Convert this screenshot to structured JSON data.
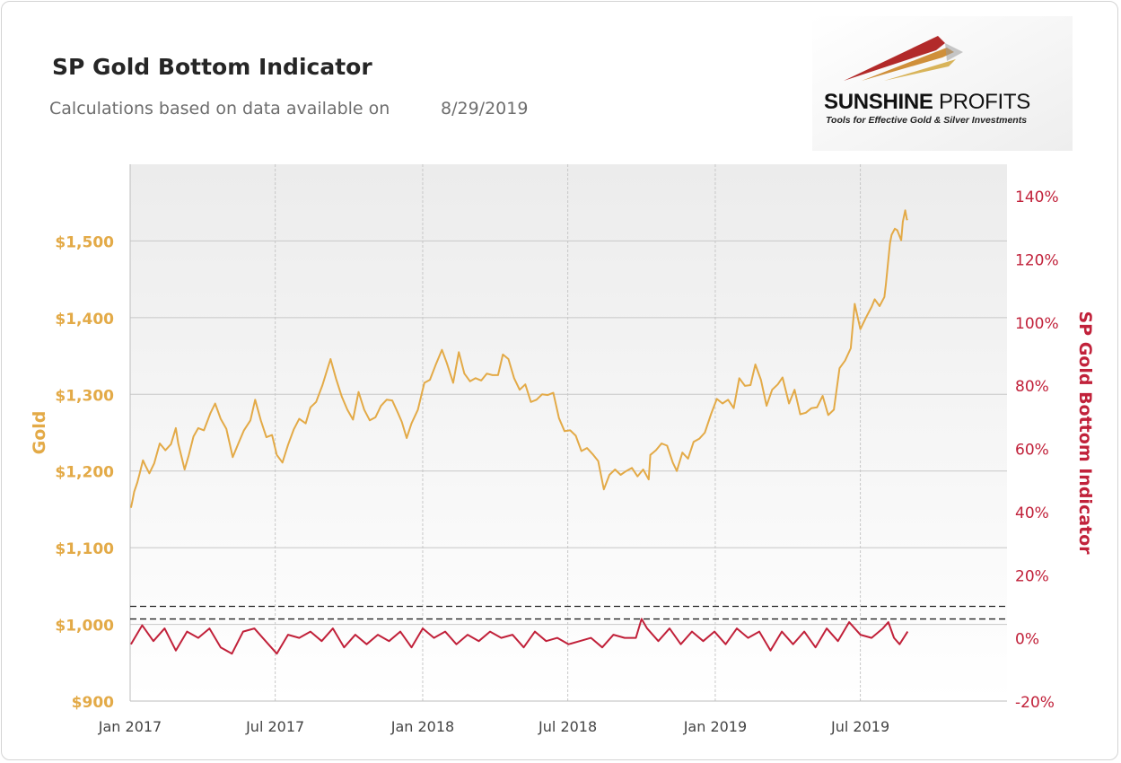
{
  "header": {
    "title": "SP Gold Bottom Indicator",
    "subtitle_label": "Calculations based on data available on",
    "subtitle_date": "8/29/2019"
  },
  "logo": {
    "name_bold": "SUNSHINE",
    "name_regular": " PROFITS",
    "tagline": "Tools for Effective Gold & Silver Investments"
  },
  "colors": {
    "gold": "#e3aa47",
    "indicator": "#c1213a",
    "grid": "#c8c8c8",
    "plot_top": "#ececec",
    "plot_bottom": "#ffffff"
  },
  "chart_data": {
    "type": "line",
    "title": "SP Gold Bottom Indicator",
    "x_range": [
      "2017-01-01",
      "2019-12-31"
    ],
    "x_ticks": [
      {
        "date": "2017-01-01",
        "label": "Jan 2017"
      },
      {
        "date": "2017-07-01",
        "label": "Jul 2017"
      },
      {
        "date": "2018-01-01",
        "label": "Jan 2018"
      },
      {
        "date": "2018-07-01",
        "label": "Jul 2018"
      },
      {
        "date": "2019-01-01",
        "label": "Jan 2019"
      },
      {
        "date": "2019-07-01",
        "label": "Jul 2019"
      }
    ],
    "y_left": {
      "label": "Gold",
      "range": [
        900,
        1600
      ],
      "ticks": [
        900,
        1000,
        1100,
        1200,
        1300,
        1400,
        1500
      ],
      "tick_labels": [
        "$900",
        "$1,000",
        "$1,100",
        "$1,200",
        "$1,300",
        "$1,400",
        "$1,500"
      ]
    },
    "y_right": {
      "label": "SP Gold Bottom Indicator",
      "range": [
        -20,
        150
      ],
      "ticks": [
        -20,
        0,
        20,
        40,
        60,
        80,
        100,
        120,
        140
      ],
      "tick_labels": [
        "-20%",
        "0%",
        "20%",
        "40%",
        "60%",
        "80%",
        "100%",
        "120%",
        "140%"
      ]
    },
    "threshold_lines": [
      6,
      10
    ],
    "grid": true,
    "series": [
      {
        "name": "Gold",
        "axis": "left",
        "points": [
          [
            "2017-01-02",
            1152
          ],
          [
            "2017-01-04",
            1162
          ],
          [
            "2017-01-06",
            1173
          ],
          [
            "2017-01-10",
            1185
          ],
          [
            "2017-01-13",
            1197
          ],
          [
            "2017-01-17",
            1214
          ],
          [
            "2017-01-20",
            1207
          ],
          [
            "2017-01-25",
            1197
          ],
          [
            "2017-01-31",
            1210
          ],
          [
            "2017-02-07",
            1236
          ],
          [
            "2017-02-14",
            1227
          ],
          [
            "2017-02-21",
            1235
          ],
          [
            "2017-02-27",
            1256
          ],
          [
            "2017-03-02",
            1236
          ],
          [
            "2017-03-07",
            1215
          ],
          [
            "2017-03-10",
            1202
          ],
          [
            "2017-03-15",
            1220
          ],
          [
            "2017-03-21",
            1245
          ],
          [
            "2017-03-27",
            1256
          ],
          [
            "2017-04-03",
            1253
          ],
          [
            "2017-04-11",
            1275
          ],
          [
            "2017-04-17",
            1288
          ],
          [
            "2017-04-24",
            1268
          ],
          [
            "2017-05-01",
            1255
          ],
          [
            "2017-05-09",
            1218
          ],
          [
            "2017-05-16",
            1236
          ],
          [
            "2017-05-23",
            1253
          ],
          [
            "2017-05-31",
            1266
          ],
          [
            "2017-06-06",
            1293
          ],
          [
            "2017-06-13",
            1266
          ],
          [
            "2017-06-20",
            1244
          ],
          [
            "2017-06-27",
            1247
          ],
          [
            "2017-07-03",
            1221
          ],
          [
            "2017-07-10",
            1211
          ],
          [
            "2017-07-17",
            1234
          ],
          [
            "2017-07-24",
            1254
          ],
          [
            "2017-07-31",
            1268
          ],
          [
            "2017-08-08",
            1262
          ],
          [
            "2017-08-14",
            1283
          ],
          [
            "2017-08-21",
            1290
          ],
          [
            "2017-08-29",
            1312
          ],
          [
            "2017-09-05",
            1336
          ],
          [
            "2017-09-08",
            1346
          ],
          [
            "2017-09-15",
            1320
          ],
          [
            "2017-09-22",
            1297
          ],
          [
            "2017-09-29",
            1280
          ],
          [
            "2017-10-06",
            1267
          ],
          [
            "2017-10-13",
            1303
          ],
          [
            "2017-10-20",
            1280
          ],
          [
            "2017-10-27",
            1266
          ],
          [
            "2017-11-03",
            1270
          ],
          [
            "2017-11-10",
            1285
          ],
          [
            "2017-11-17",
            1293
          ],
          [
            "2017-11-24",
            1292
          ],
          [
            "2017-12-01",
            1276
          ],
          [
            "2017-12-06",
            1264
          ],
          [
            "2017-12-12",
            1243
          ],
          [
            "2017-12-18",
            1262
          ],
          [
            "2017-12-26",
            1280
          ],
          [
            "2018-01-03",
            1315
          ],
          [
            "2018-01-10",
            1319
          ],
          [
            "2018-01-17",
            1338
          ],
          [
            "2018-01-25",
            1358
          ],
          [
            "2018-01-31",
            1341
          ],
          [
            "2018-02-08",
            1315
          ],
          [
            "2018-02-15",
            1355
          ],
          [
            "2018-02-22",
            1327
          ],
          [
            "2018-03-01",
            1317
          ],
          [
            "2018-03-08",
            1321
          ],
          [
            "2018-03-15",
            1318
          ],
          [
            "2018-03-22",
            1327
          ],
          [
            "2018-03-29",
            1325
          ],
          [
            "2018-04-05",
            1325
          ],
          [
            "2018-04-11",
            1352
          ],
          [
            "2018-04-18",
            1346
          ],
          [
            "2018-04-25",
            1321
          ],
          [
            "2018-05-02",
            1306
          ],
          [
            "2018-05-09",
            1313
          ],
          [
            "2018-05-16",
            1290
          ],
          [
            "2018-05-23",
            1293
          ],
          [
            "2018-05-30",
            1300
          ],
          [
            "2018-06-06",
            1299
          ],
          [
            "2018-06-13",
            1302
          ],
          [
            "2018-06-20",
            1269
          ],
          [
            "2018-06-27",
            1252
          ],
          [
            "2018-07-04",
            1253
          ],
          [
            "2018-07-11",
            1246
          ],
          [
            "2018-07-18",
            1226
          ],
          [
            "2018-07-25",
            1230
          ],
          [
            "2018-08-01",
            1222
          ],
          [
            "2018-08-08",
            1213
          ],
          [
            "2018-08-15",
            1176
          ],
          [
            "2018-08-22",
            1195
          ],
          [
            "2018-08-29",
            1202
          ],
          [
            "2018-09-05",
            1195
          ],
          [
            "2018-09-12",
            1200
          ],
          [
            "2018-09-19",
            1204
          ],
          [
            "2018-09-26",
            1193
          ],
          [
            "2018-10-03",
            1202
          ],
          [
            "2018-10-10",
            1189
          ],
          [
            "2018-10-12",
            1221
          ],
          [
            "2018-10-19",
            1227
          ],
          [
            "2018-10-26",
            1236
          ],
          [
            "2018-11-02",
            1233
          ],
          [
            "2018-11-09",
            1211
          ],
          [
            "2018-11-14",
            1200
          ],
          [
            "2018-11-21",
            1224
          ],
          [
            "2018-11-28",
            1216
          ],
          [
            "2018-12-05",
            1238
          ],
          [
            "2018-12-12",
            1242
          ],
          [
            "2018-12-19",
            1250
          ],
          [
            "2018-12-27",
            1275
          ],
          [
            "2019-01-03",
            1294
          ],
          [
            "2019-01-10",
            1288
          ],
          [
            "2019-01-17",
            1293
          ],
          [
            "2019-01-24",
            1282
          ],
          [
            "2019-01-31",
            1321
          ],
          [
            "2019-02-07",
            1311
          ],
          [
            "2019-02-14",
            1312
          ],
          [
            "2019-02-20",
            1339
          ],
          [
            "2019-02-27",
            1319
          ],
          [
            "2019-03-06",
            1285
          ],
          [
            "2019-03-13",
            1306
          ],
          [
            "2019-03-20",
            1313
          ],
          [
            "2019-03-26",
            1322
          ],
          [
            "2019-04-03",
            1288
          ],
          [
            "2019-04-10",
            1306
          ],
          [
            "2019-04-17",
            1274
          ],
          [
            "2019-04-24",
            1276
          ],
          [
            "2019-05-01",
            1282
          ],
          [
            "2019-05-08",
            1283
          ],
          [
            "2019-05-15",
            1298
          ],
          [
            "2019-05-22",
            1273
          ],
          [
            "2019-05-29",
            1280
          ],
          [
            "2019-06-05",
            1334
          ],
          [
            "2019-06-12",
            1344
          ],
          [
            "2019-06-19",
            1360
          ],
          [
            "2019-06-24",
            1418
          ],
          [
            "2019-07-01",
            1385
          ],
          [
            "2019-07-08",
            1400
          ],
          [
            "2019-07-15",
            1414
          ],
          [
            "2019-07-19",
            1424
          ],
          [
            "2019-07-25",
            1415
          ],
          [
            "2019-07-31",
            1427
          ],
          [
            "2019-08-02",
            1444
          ],
          [
            "2019-08-07",
            1497
          ],
          [
            "2019-08-09",
            1508
          ],
          [
            "2019-08-13",
            1516
          ],
          [
            "2019-08-16",
            1514
          ],
          [
            "2019-08-21",
            1501
          ],
          [
            "2019-08-23",
            1525
          ],
          [
            "2019-08-26",
            1540
          ],
          [
            "2019-08-28",
            1528
          ],
          [
            "2019-08-29",
            1529
          ]
        ]
      },
      {
        "name": "SP Gold Bottom Indicator",
        "axis": "right",
        "points": [
          [
            "2017-01-02",
            -2
          ],
          [
            "2017-01-16",
            4
          ],
          [
            "2017-01-30",
            -1
          ],
          [
            "2017-02-13",
            3
          ],
          [
            "2017-02-27",
            -4
          ],
          [
            "2017-03-13",
            2
          ],
          [
            "2017-03-27",
            0
          ],
          [
            "2017-04-10",
            3
          ],
          [
            "2017-04-24",
            -3
          ],
          [
            "2017-05-08",
            -5
          ],
          [
            "2017-05-22",
            2
          ],
          [
            "2017-06-05",
            3
          ],
          [
            "2017-06-19",
            -1
          ],
          [
            "2017-07-03",
            -5
          ],
          [
            "2017-07-17",
            1
          ],
          [
            "2017-07-31",
            0
          ],
          [
            "2017-08-14",
            2
          ],
          [
            "2017-08-28",
            -1
          ],
          [
            "2017-09-11",
            3
          ],
          [
            "2017-09-25",
            -3
          ],
          [
            "2017-10-09",
            1
          ],
          [
            "2017-10-23",
            -2
          ],
          [
            "2017-11-06",
            1
          ],
          [
            "2017-11-20",
            -1
          ],
          [
            "2017-12-04",
            2
          ],
          [
            "2017-12-18",
            -3
          ],
          [
            "2018-01-01",
            3
          ],
          [
            "2018-01-15",
            0
          ],
          [
            "2018-01-29",
            2
          ],
          [
            "2018-02-12",
            -2
          ],
          [
            "2018-02-26",
            1
          ],
          [
            "2018-03-12",
            -1
          ],
          [
            "2018-03-26",
            2
          ],
          [
            "2018-04-09",
            0
          ],
          [
            "2018-04-23",
            1
          ],
          [
            "2018-05-07",
            -3
          ],
          [
            "2018-05-21",
            2
          ],
          [
            "2018-06-04",
            -1
          ],
          [
            "2018-06-18",
            0
          ],
          [
            "2018-07-02",
            -2
          ],
          [
            "2018-07-16",
            -1
          ],
          [
            "2018-07-30",
            0
          ],
          [
            "2018-08-13",
            -3
          ],
          [
            "2018-08-27",
            1
          ],
          [
            "2018-09-10",
            0
          ],
          [
            "2018-09-24",
            0
          ],
          [
            "2018-10-01",
            6
          ],
          [
            "2018-10-08",
            3
          ],
          [
            "2018-10-22",
            -1
          ],
          [
            "2018-11-05",
            3
          ],
          [
            "2018-11-19",
            -2
          ],
          [
            "2018-12-03",
            2
          ],
          [
            "2018-12-17",
            -1
          ],
          [
            "2018-12-31",
            2
          ],
          [
            "2019-01-14",
            -2
          ],
          [
            "2019-01-28",
            3
          ],
          [
            "2019-02-11",
            0
          ],
          [
            "2019-02-25",
            2
          ],
          [
            "2019-03-11",
            -4
          ],
          [
            "2019-03-25",
            2
          ],
          [
            "2019-04-08",
            -2
          ],
          [
            "2019-04-22",
            2
          ],
          [
            "2019-05-06",
            -3
          ],
          [
            "2019-05-20",
            3
          ],
          [
            "2019-06-03",
            -1
          ],
          [
            "2019-06-17",
            5
          ],
          [
            "2019-07-01",
            1
          ],
          [
            "2019-07-15",
            0
          ],
          [
            "2019-07-29",
            3
          ],
          [
            "2019-08-05",
            5
          ],
          [
            "2019-08-12",
            0
          ],
          [
            "2019-08-19",
            -2
          ],
          [
            "2019-08-29",
            2
          ]
        ]
      }
    ]
  }
}
